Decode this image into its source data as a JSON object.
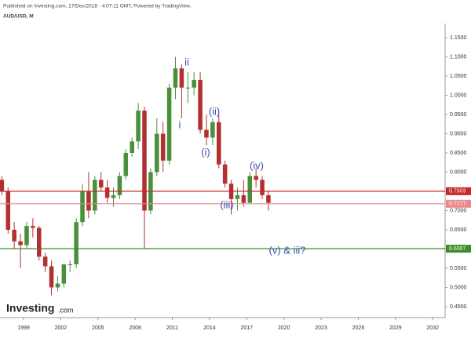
{
  "header": {
    "published": "Published on Investing.com, 17/Dec/2018 - 4:07:11 GMT, Powered by TradingView.",
    "symbol": "AUD/USD, M"
  },
  "brand": {
    "name": "Investing",
    "suffix": ".com"
  },
  "chart_data": {
    "type": "candlestick",
    "x": [
      1997.0,
      1997.5,
      1998.0,
      1998.5,
      1999.0,
      1999.5,
      2000.0,
      2000.5,
      2001.0,
      2001.5,
      2002.0,
      2002.5,
      2003.0,
      2003.5,
      2004.0,
      2004.5,
      2005.0,
      2005.5,
      2006.0,
      2006.5,
      2007.0,
      2007.5,
      2008.0,
      2008.5,
      2009.0,
      2009.5,
      2010.0,
      2010.5,
      2011.0,
      2011.5,
      2012.0,
      2012.5,
      2013.0,
      2013.5,
      2014.0,
      2014.5,
      2015.0,
      2015.5,
      2016.0,
      2016.5,
      2017.0,
      2017.5,
      2018.0,
      2018.5
    ],
    "open": [
      0.78,
      0.75,
      0.65,
      0.62,
      0.61,
      0.66,
      0.655,
      0.58,
      0.555,
      0.5,
      0.51,
      0.56,
      0.56,
      0.67,
      0.75,
      0.7,
      0.78,
      0.76,
      0.733,
      0.74,
      0.79,
      0.85,
      0.88,
      0.96,
      0.7,
      0.8,
      0.9,
      0.83,
      1.02,
      1.07,
      1.02,
      1.02,
      1.04,
      0.91,
      0.89,
      0.93,
      0.82,
      0.77,
      0.73,
      0.74,
      0.72,
      0.79,
      0.78,
      0.74
    ],
    "high": [
      0.79,
      0.76,
      0.67,
      0.64,
      0.67,
      0.68,
      0.66,
      0.59,
      0.57,
      0.53,
      0.56,
      0.57,
      0.68,
      0.77,
      0.8,
      0.79,
      0.8,
      0.78,
      0.76,
      0.8,
      0.86,
      0.89,
      0.98,
      0.97,
      0.81,
      0.94,
      0.93,
      1.03,
      1.1,
      1.08,
      1.06,
      1.06,
      1.06,
      0.95,
      0.94,
      0.95,
      0.83,
      0.78,
      0.76,
      0.78,
      0.8,
      0.81,
      0.79,
      0.75
    ],
    "low": [
      0.74,
      0.64,
      0.6,
      0.55,
      0.6,
      0.63,
      0.57,
      0.54,
      0.48,
      0.49,
      0.5,
      0.54,
      0.55,
      0.66,
      0.68,
      0.69,
      0.75,
      0.72,
      0.71,
      0.73,
      0.78,
      0.84,
      0.86,
      0.6,
      0.69,
      0.79,
      0.8,
      0.82,
      0.99,
      0.94,
      0.98,
      1.0,
      0.9,
      0.87,
      0.87,
      0.81,
      0.76,
      0.69,
      0.7,
      0.71,
      0.72,
      0.76,
      0.73,
      0.7
    ],
    "close": [
      0.75,
      0.65,
      0.62,
      0.61,
      0.66,
      0.655,
      0.58,
      0.555,
      0.5,
      0.51,
      0.56,
      0.56,
      0.67,
      0.75,
      0.7,
      0.78,
      0.76,
      0.733,
      0.74,
      0.79,
      0.85,
      0.88,
      0.96,
      0.7,
      0.8,
      0.9,
      0.83,
      1.02,
      1.07,
      1.02,
      1.02,
      1.04,
      0.91,
      0.89,
      0.93,
      0.82,
      0.77,
      0.73,
      0.74,
      0.72,
      0.79,
      0.78,
      0.74,
      0.72
    ],
    "up_color": "#4a8f3c",
    "down_color": "#b0312f",
    "xlim": [
      1997.1,
      2033.0
    ],
    "ylim": [
      0.43,
      1.17
    ],
    "xticks": [
      1999,
      2002,
      2005,
      2008,
      2011,
      2014,
      2017,
      2020,
      2023,
      2026,
      2029,
      2032
    ],
    "yticks": [
      {
        "value": 1.15,
        "label": "1.1500"
      },
      {
        "value": 1.1,
        "label": "1.1000"
      },
      {
        "value": 1.05,
        "label": "1.0500"
      },
      {
        "value": 1.0,
        "label": "1.0000"
      },
      {
        "value": 0.95,
        "label": "0.9500"
      },
      {
        "value": 0.9,
        "label": "0.9000"
      },
      {
        "value": 0.85,
        "label": "0.8500"
      },
      {
        "value": 0.8,
        "label": "0.8000"
      },
      {
        "value": 0.75,
        "label": "0.7500"
      },
      {
        "value": 0.7,
        "label": "0.7000"
      },
      {
        "value": 0.65,
        "label": "0.6500"
      },
      {
        "value": 0.6,
        "label": "0.6000"
      },
      {
        "value": 0.55,
        "label": "0.5500"
      },
      {
        "value": 0.5,
        "label": "0.5000"
      },
      {
        "value": 0.45,
        "label": "0.4500"
      }
    ],
    "levels": [
      {
        "value": 0.7503,
        "color": "#c62828"
      },
      {
        "value": 0.7177,
        "color": "#e88a8a"
      },
      {
        "value": 0.6007,
        "color": "#3d8b2a"
      }
    ],
    "annotations": [
      "ii",
      "i",
      "(ii)",
      "(i)",
      "(iii)",
      "(iv)",
      "(v) & iii?"
    ]
  }
}
